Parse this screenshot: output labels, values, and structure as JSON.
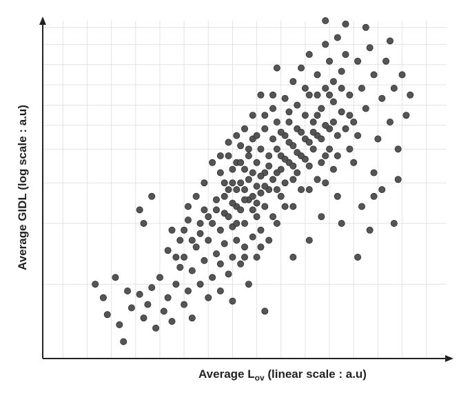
{
  "chart_data": {
    "type": "scatter",
    "ylabel": "Average GIDL (log scale : a.u)",
    "xlabel": [
      "Average L",
      "ov",
      " (linear scale : a.u)"
    ],
    "xlim": [
      0,
      100
    ],
    "ylim": [
      0,
      100
    ],
    "xgrid": [
      5,
      11,
      17,
      23,
      29,
      35,
      41,
      47,
      53,
      59,
      65,
      71,
      77,
      83,
      89,
      95
    ],
    "ygrid": [
      22,
      40,
      52,
      62,
      69,
      75,
      81,
      87,
      93,
      98
    ],
    "color": "#555555",
    "x": [
      13,
      15,
      16,
      18,
      19,
      21,
      20,
      22,
      24,
      25,
      27,
      26,
      28,
      30,
      29,
      31,
      32,
      33,
      34,
      35,
      36,
      37,
      25,
      27,
      24,
      31,
      32,
      34,
      35,
      36,
      37,
      38,
      39,
      40,
      40,
      41,
      42,
      42,
      43,
      43,
      44,
      44,
      45,
      45,
      46,
      46,
      47,
      47,
      48,
      48,
      49,
      49,
      50,
      50,
      51,
      51,
      52,
      52,
      53,
      53,
      54,
      44,
      45,
      46,
      47,
      48,
      49,
      50,
      50,
      51,
      52,
      52,
      53,
      53,
      54,
      54,
      55,
      55,
      55,
      56,
      56,
      57,
      57,
      58,
      58,
      59,
      59,
      60,
      60,
      61,
      61,
      62,
      62,
      63,
      63,
      64,
      64,
      65,
      65,
      66,
      66,
      67,
      67,
      68,
      68,
      69,
      70,
      70,
      71,
      72,
      72,
      62,
      64,
      66,
      68,
      70,
      71,
      72,
      73,
      74,
      75,
      76,
      77,
      78,
      79,
      80,
      81,
      82,
      83,
      84,
      85,
      86,
      87,
      88,
      89,
      90,
      91,
      86,
      80,
      75,
      70,
      77,
      82,
      79,
      84,
      81,
      78,
      74,
      87,
      82,
      88,
      58,
      54,
      60,
      57,
      52,
      50,
      48,
      46,
      44,
      42,
      40,
      38,
      36,
      33,
      39,
      41,
      44,
      47,
      55,
      62,
      66,
      69,
      73,
      76,
      70,
      46,
      47,
      48,
      49,
      50,
      51,
      52,
      53,
      54,
      55,
      56,
      57,
      58,
      59,
      60,
      61,
      62,
      63,
      64,
      65,
      66,
      67,
      68,
      69,
      70,
      71,
      72,
      73,
      74,
      75,
      60,
      58,
      56,
      54,
      50,
      48,
      45,
      43,
      41,
      39,
      37,
      35,
      58,
      62,
      66,
      69,
      73,
      76,
      78,
      74,
      71,
      68,
      65,
      63,
      61,
      59,
      57,
      55,
      53,
      51,
      49,
      47
    ],
    "values": [
      22,
      18,
      13,
      24,
      10,
      20,
      5,
      15,
      19,
      12,
      21,
      16,
      9,
      14,
      24,
      18,
      11,
      22,
      27,
      16,
      20,
      12,
      40,
      48,
      44,
      32,
      38,
      35,
      30,
      41,
      26,
      33,
      37,
      29,
      44,
      35,
      24,
      40,
      31,
      47,
      28,
      38,
      43,
      34,
      25,
      50,
      30,
      39,
      45,
      35,
      28,
      52,
      40,
      33,
      47,
      22,
      36,
      55,
      42,
      30,
      49,
      55,
      48,
      60,
      52,
      58,
      63,
      47,
      56,
      60,
      44,
      65,
      51,
      58,
      62,
      38,
      45,
      55,
      68,
      50,
      60,
      42,
      65,
      55,
      70,
      48,
      60,
      52,
      66,
      58,
      73,
      45,
      63,
      55,
      68,
      60,
      50,
      72,
      65,
      57,
      78,
      62,
      70,
      53,
      66,
      74,
      60,
      80,
      68,
      56,
      76,
      82,
      86,
      90,
      84,
      93,
      88,
      82,
      95,
      85,
      90,
      78,
      70,
      88,
      80,
      74,
      92,
      84,
      65,
      77,
      88,
      70,
      80,
      62,
      84,
      72,
      78,
      94,
      98,
      99,
      100,
      58,
      55,
      45,
      50,
      38,
      30,
      40,
      40,
      48,
      53,
      86,
      78,
      77,
      74,
      72,
      68,
      66,
      64,
      60,
      58,
      52,
      48,
      45,
      30,
      22,
      18,
      20,
      17,
      14,
      30,
      35,
      42,
      48,
      62,
      52,
      42,
      46,
      40,
      44,
      50,
      53,
      48,
      46,
      54,
      51,
      57,
      53,
      62,
      56,
      59,
      64,
      57,
      61,
      67,
      59,
      64,
      67,
      72,
      65,
      69,
      62,
      70,
      66,
      73,
      68,
      45,
      40,
      35,
      33,
      30,
      50,
      52,
      44,
      42,
      40,
      35,
      38,
      50,
      53,
      50,
      58,
      60,
      72,
      66,
      80,
      78,
      78,
      80,
      75,
      70,
      67,
      78,
      72,
      66,
      62,
      58,
      56
    ]
  }
}
